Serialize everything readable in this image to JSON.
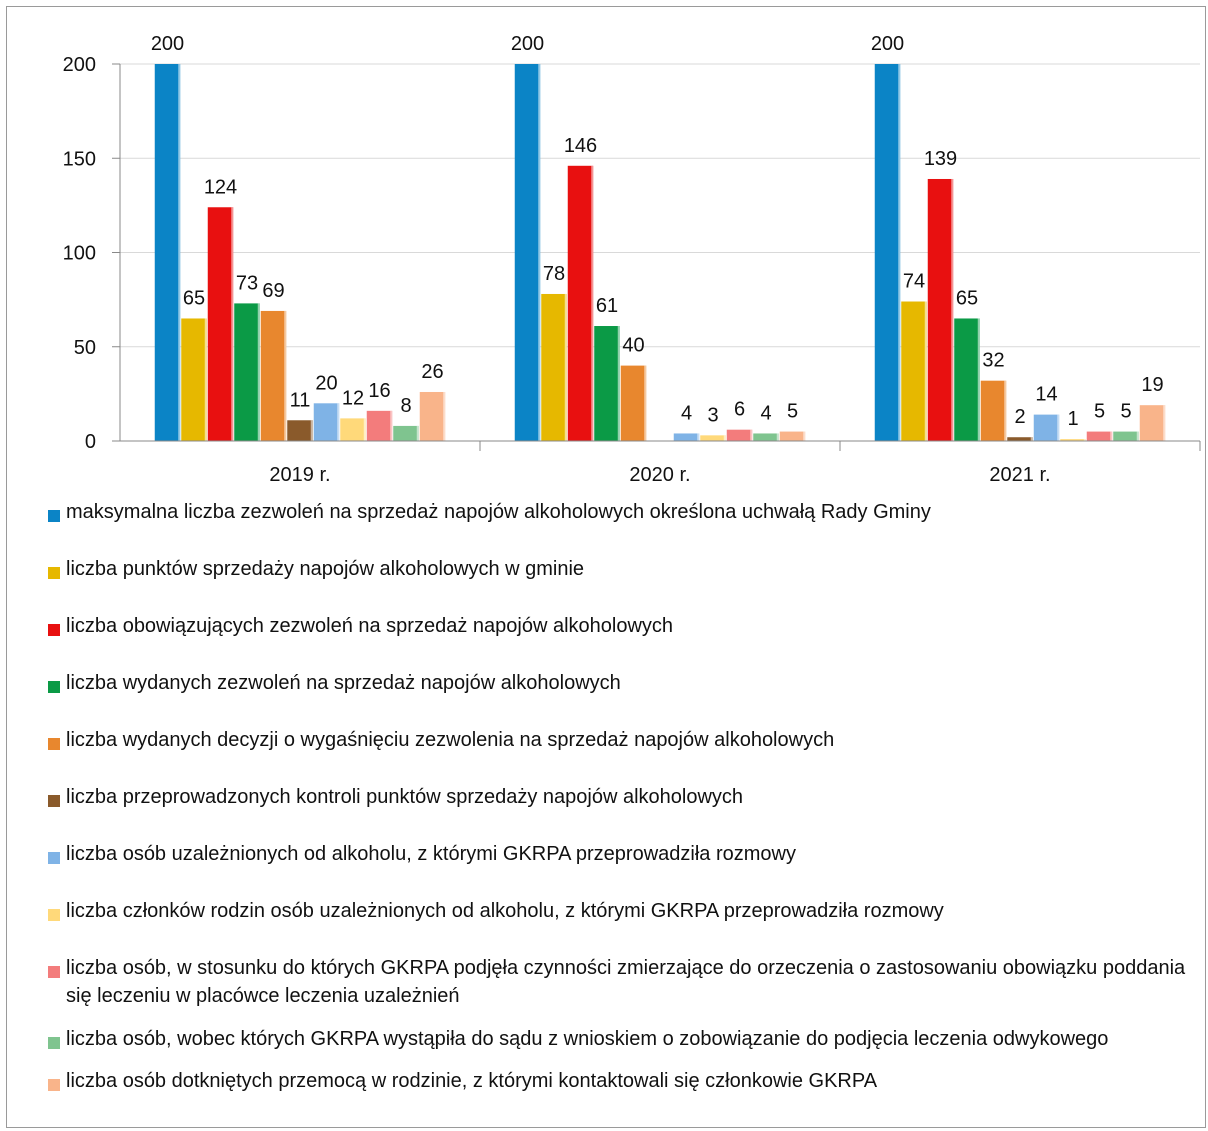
{
  "chart_data": {
    "type": "bar",
    "categories": [
      "2019 r.",
      "2020 r.",
      "2021 r."
    ],
    "ylim": [
      0,
      200
    ],
    "y_ticks": [
      "0",
      "50",
      "100",
      "150",
      "200"
    ],
    "grid": true,
    "legend_position": "bottom",
    "series": [
      {
        "name": "maksymalna liczba zezwoleń na sprzedaż napojów alkoholowych określona uchwałą Rady Gminy",
        "color": "#0b84c6",
        "values": [
          200,
          200,
          200
        ],
        "labels": [
          "200",
          "200",
          "200"
        ]
      },
      {
        "name": "liczba punktów sprzedaży napojów alkoholowych w gminie",
        "color": "#e6b800",
        "values": [
          65,
          78,
          74
        ],
        "labels": [
          "65",
          "78",
          "74"
        ]
      },
      {
        "name": "liczba obowiązujących zezwoleń na sprzedaż napojów alkoholowych",
        "color": "#e81010",
        "values": [
          124,
          146,
          139
        ],
        "labels": [
          "124",
          "146",
          "139"
        ]
      },
      {
        "name": "liczba wydanych zezwoleń na sprzedaż napojów alkoholowych",
        "color": "#0b9a46",
        "values": [
          73,
          61,
          65
        ],
        "labels": [
          "73",
          "61",
          "65"
        ]
      },
      {
        "name": "liczba wydanych decyzji o wygaśnięciu zezwolenia na sprzedaż napojów alkoholowych",
        "color": "#e8872e",
        "values": [
          69,
          40,
          32
        ],
        "labels": [
          "69",
          "40",
          "32"
        ]
      },
      {
        "name": "liczba przeprowadzonych kontroli punktów sprzedaży napojów alkoholowych",
        "color": "#8a5a2b",
        "values": [
          11,
          0,
          2
        ],
        "labels": [
          "11",
          "",
          "2"
        ]
      },
      {
        "name": "liczba osób uzależnionych od alkoholu, z którymi GKRPA przeprowadziła rozmowy",
        "color": "#7fb3e6",
        "values": [
          20,
          4,
          14
        ],
        "labels": [
          "20",
          "4",
          "14"
        ]
      },
      {
        "name": "liczba członków rodzin osób uzależnionych od alkoholu, z którymi GKRPA przeprowadziła rozmowy",
        "color": "#ffd97a",
        "values": [
          12,
          3,
          1
        ],
        "labels": [
          "12",
          "3",
          "1"
        ]
      },
      {
        "name": "liczba osób, w stosunku do których GKRPA podjęła czynności zmierzające do orzeczenia o zastosowaniu obowiązku poddania się leczeniu w placówce leczenia uzależnień",
        "color": "#f37c7c",
        "values": [
          16,
          6,
          5
        ],
        "labels": [
          "16",
          "6",
          "5"
        ]
      },
      {
        "name": "liczba osób, wobec których GKRPA wystąpiła do sądu z wnioskiem o zobowiązanie do podjęcia leczenia odwykowego",
        "color": "#7fc48f",
        "values": [
          8,
          4,
          5
        ],
        "labels": [
          "8",
          "4",
          "5"
        ]
      },
      {
        "name": "liczba osób dotkniętych przemocą w rodzinie, z którymi kontaktowali się członkowie GKRPA",
        "color": "#f9b48a",
        "values": [
          26,
          5,
          19
        ],
        "labels": [
          "26",
          "5",
          "19"
        ]
      }
    ]
  }
}
